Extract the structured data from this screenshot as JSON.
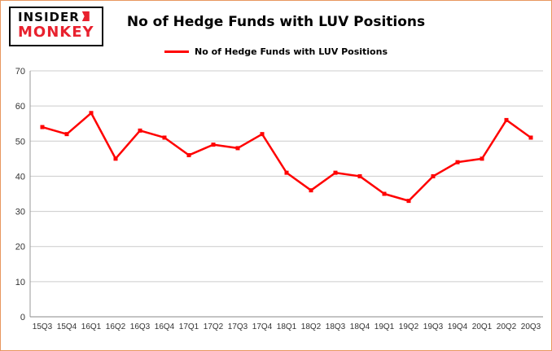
{
  "header": {
    "logo": {
      "line1": "INSIDER",
      "line2": "MONKEY"
    },
    "title": "No of Hedge Funds with LUV Positions"
  },
  "legend": {
    "label": "No of Hedge Funds with LUV Positions"
  },
  "colors": {
    "line": "#ff0000",
    "logo_red": "#e8212e",
    "frame_border": "#e8975f",
    "gridline": "#cccccc",
    "axis": "#999999",
    "tick_text": "#333333"
  },
  "chart_data": {
    "type": "line",
    "title": "No of Hedge Funds with LUV Positions",
    "categories": [
      "15Q3",
      "15Q4",
      "16Q1",
      "16Q2",
      "16Q3",
      "16Q4",
      "17Q1",
      "17Q2",
      "17Q3",
      "17Q4",
      "18Q1",
      "18Q2",
      "18Q3",
      "18Q4",
      "19Q1",
      "19Q2",
      "19Q3",
      "19Q4",
      "20Q1",
      "20Q2",
      "20Q3"
    ],
    "series": [
      {
        "name": "No of Hedge Funds with LUV Positions",
        "values": [
          54,
          52,
          58,
          45,
          53,
          51,
          46,
          49,
          48,
          52,
          41,
          36,
          41,
          40,
          35,
          33,
          40,
          44,
          45,
          56,
          51
        ]
      }
    ],
    "xlabel": "",
    "ylabel": "",
    "ylim": [
      0,
      70
    ],
    "yticks": [
      0,
      10,
      20,
      30,
      40,
      50,
      60,
      70
    ],
    "grid": true,
    "legend_position": "top",
    "line_color": "#ff0000"
  }
}
